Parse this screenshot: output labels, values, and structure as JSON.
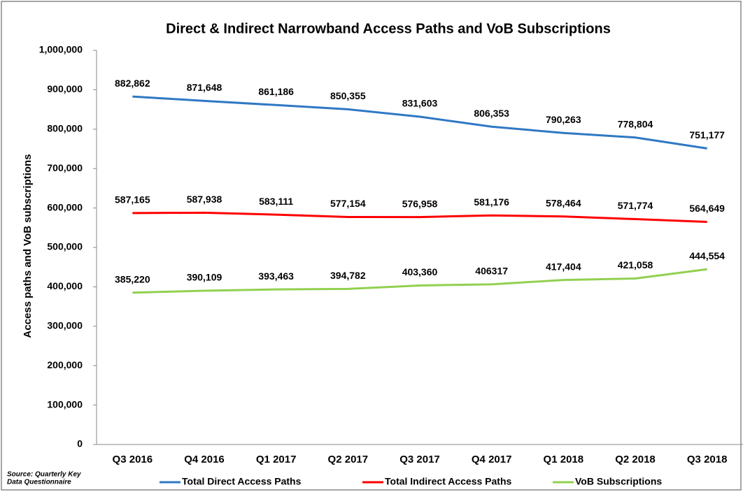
{
  "chart_data": {
    "type": "line",
    "title": "Direct & Indirect Narrowband Access Paths and VoB Subscriptions",
    "ylabel": "Access paths and VoB subscriptions",
    "source": [
      "Source:  Quarterly Key",
      "Data Questionnaire"
    ],
    "categories": [
      "Q3 2016",
      "Q4 2016",
      "Q1 2017",
      "Q2 2017",
      "Q3 2017",
      "Q4 2017",
      "Q1 2018",
      "Q2 2018",
      "Q3 2018"
    ],
    "series": [
      {
        "name": "Total Direct Access Paths",
        "color": "#2f78c4",
        "values": [
          882862,
          871648,
          861186,
          850355,
          831603,
          806353,
          790263,
          778804,
          751177
        ],
        "value_labels": [
          "882,862",
          "871,648",
          "861,186",
          "850,355",
          "831,603",
          "806,353",
          "790,263",
          "778,804",
          "751,177"
        ]
      },
      {
        "name": "Total Indirect Access Paths",
        "color": "#ff0000",
        "values": [
          587165,
          587938,
          583111,
          577154,
          576958,
          581176,
          578464,
          571774,
          564649
        ],
        "value_labels": [
          "587,165",
          "587,938",
          "583,111",
          "577,154",
          "576,958",
          "581,176",
          "578,464",
          "571,774",
          "564,649"
        ]
      },
      {
        "name": "VoB Subscriptions",
        "color": "#92d050",
        "values": [
          385220,
          390109,
          393463,
          394782,
          403360,
          406317,
          417404,
          421058,
          444554
        ],
        "value_labels": [
          "385,220",
          "390,109",
          "393,463",
          "394,782",
          "403,360",
          "406317",
          "417,404",
          "421,058",
          "444,554"
        ]
      }
    ],
    "ylim": [
      0,
      1000000
    ],
    "yticks": [
      0,
      {
        "value": 100000,
        "label": "100,000"
      },
      {
        "value": 200000,
        "label": "200,000"
      },
      {
        "value": 300000,
        "label": "300,000"
      },
      {
        "value": 400000,
        "label": "400,000"
      },
      {
        "value": 500000,
        "label": "500,000"
      },
      {
        "value": 600000,
        "label": "600,000"
      },
      {
        "value": 700000,
        "label": "700,000"
      },
      {
        "value": 800000,
        "label": "800,000"
      },
      {
        "value": 900000,
        "label": "900,000"
      },
      {
        "value": 1000000,
        "label": "1,000,000"
      }
    ],
    "legend": "bottom"
  }
}
